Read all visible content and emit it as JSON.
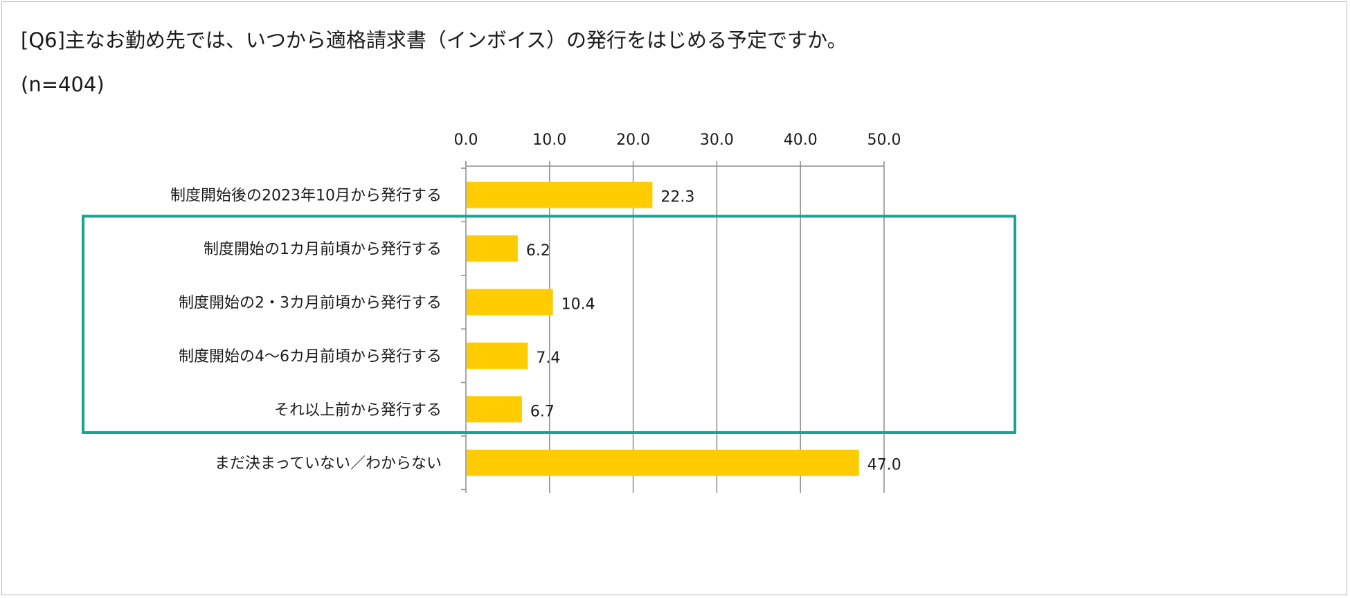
{
  "title": "[Q6]主なお勤め先では、いつから適格請求書（インボイス）の発行をはじめる予定ですか。",
  "sample_size": "(n=404)",
  "colors": {
    "bar": "#ffcc00",
    "highlight_box": "#1aa394",
    "grid": "#8c8c8c"
  },
  "chart_data": {
    "type": "bar",
    "orientation": "horizontal",
    "title": "[Q6]主なお勤め先では、いつから適格請求書（インボイス）の発行をはじめる予定ですか。",
    "subtitle": "(n=404)",
    "xlim": [
      0,
      50
    ],
    "x_ticks": [
      "0.0",
      "10.0",
      "20.0",
      "30.0",
      "40.0",
      "50.0"
    ],
    "grid": true,
    "categories": [
      "制度開始後の2023年10月から発行する",
      "制度開始の1カ月前頃から発行する",
      "制度開始の2・3カ月前頃から発行する",
      "制度開始の4〜6カ月前頃から発行する",
      "それ以上前から発行する",
      "まだ決まっていない／わからない"
    ],
    "values": [
      22.3,
      6.2,
      10.4,
      7.4,
      6.7,
      47.0
    ],
    "value_labels": [
      "22.3",
      "6.2",
      "10.4",
      "7.4",
      "6.7",
      "47.0"
    ],
    "highlighted_categories": [
      1,
      2,
      3,
      4
    ]
  }
}
